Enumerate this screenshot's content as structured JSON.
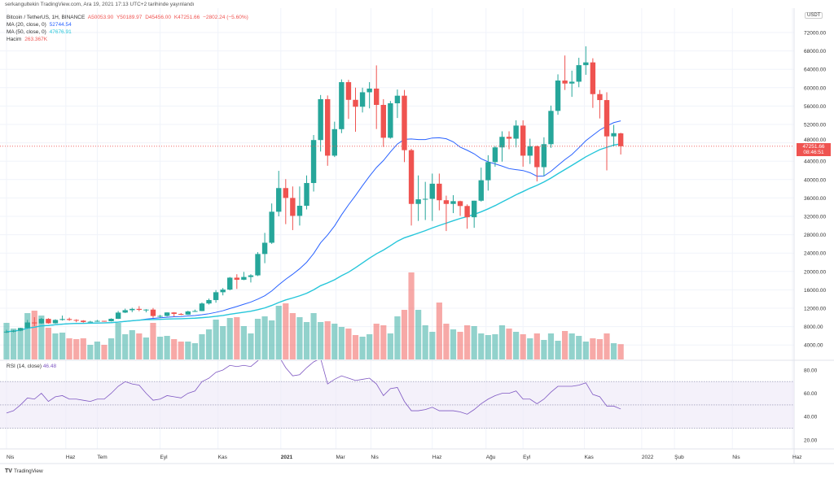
{
  "published": "serkangultekin TradingView.com, Ara 19, 2021 17:13 UTC+2 tarihinde yayınlandı",
  "legend": {
    "symbol": "Bitcoin / TetherUS, 1H, BINANCE",
    "open": "A50053.90",
    "high": "Y50189.97",
    "low": "D45456.00",
    "close": "K47251.66",
    "change": "−2802.24 (−5.60%)",
    "ma20_label": "MA (20, close, 0)",
    "ma20_value": "52744.54",
    "ma50_label": "MA (50, close, 0)",
    "ma50_value": "47676.91",
    "volume_label": "Hacim",
    "volume_value": "263.367K"
  },
  "rsi_legend": {
    "label": "RSI (14, close)",
    "value": "46.48"
  },
  "currency": "USDT",
  "last_price": {
    "price": "47251.66",
    "countdown": "08:46:51"
  },
  "footer": {
    "logo": "TV",
    "brand": "TradingView"
  },
  "colors": {
    "up": "#26a69a",
    "down": "#ef5350",
    "ma20": "#2962ff",
    "ma50": "#26c6da",
    "rsi": "#7e57c2",
    "rsi_band": "#ede7f6"
  },
  "chart_data": {
    "type": "candlestick",
    "title": "Bitcoin / TetherUS",
    "price_ticks": [
      "72000.00",
      "68000.00",
      "64000.00",
      "60000.00",
      "56000.00",
      "52000.00",
      "48000.00",
      "44000.00",
      "40000.00",
      "36000.00",
      "32000.00",
      "28000.00",
      "24000.00",
      "20000.00",
      "16000.00",
      "12000.00",
      "8000.00",
      "4000.00"
    ],
    "price_range": [
      2000,
      74000
    ],
    "rsi_ticks": [
      "80.00",
      "60.00",
      "40.00",
      "20.00"
    ],
    "rsi_range": [
      10,
      87
    ],
    "rsi_levels": [
      70,
      50,
      30
    ],
    "time_labels": [
      {
        "label": "Nis",
        "week": 0
      },
      {
        "label": "Haz",
        "week": 8.5
      },
      {
        "label": "Tem",
        "week": 13
      },
      {
        "label": "Eyl",
        "week": 22
      },
      {
        "label": "Kas",
        "week": 30.3
      },
      {
        "label": "2021",
        "week": 39.3,
        "bold": true
      },
      {
        "label": "Mar",
        "week": 47.2
      },
      {
        "label": "Nis",
        "week": 52.2
      },
      {
        "label": "Haz",
        "week": 61
      },
      {
        "label": "Ağu",
        "week": 68.7
      },
      {
        "label": "Eyl",
        "week": 74
      },
      {
        "label": "Kas",
        "week": 82.8
      },
      {
        "label": "2022",
        "week": 91
      },
      {
        "label": "Şub",
        "week": 95.7
      },
      {
        "label": "Nis",
        "week": 104
      },
      {
        "label": "Haz",
        "week": 112.6
      }
    ],
    "open": [
      6800,
      6900,
      7120,
      7700,
      8900,
      8700,
      9680,
      8720,
      9450,
      9650,
      9450,
      9300,
      9000,
      9070,
      9250,
      9160,
      9700,
      11050,
      11570,
      11850,
      11650,
      11700,
      10300,
      10330,
      11080,
      10760,
      10600,
      11300,
      11390,
      13030,
      13780,
      15480,
      16050,
      18650,
      18200,
      18800,
      19150,
      23800,
      26250,
      33000,
      38150,
      36000,
      32100,
      34300,
      39250,
      48600,
      57500,
      45200,
      50970,
      61200,
      57350,
      55850,
      59000,
      59800,
      56250,
      49100,
      56600,
      58250,
      46400,
      34700,
      35700,
      35800,
      39100,
      35500,
      34700,
      35300,
      34250,
      31800,
      35400,
      39850,
      43800,
      47000,
      49300,
      48900,
      51750,
      45200,
      47250,
      42700,
      47700,
      54950,
      61550,
      60900,
      61300,
      64900,
      65500,
      58600,
      57300,
      49400,
      50053.9
    ],
    "high": [
      7300,
      7250,
      7750,
      9450,
      10050,
      9900,
      9830,
      9600,
      10400,
      9950,
      9600,
      9400,
      9250,
      9450,
      9250,
      9800,
      11400,
      11900,
      12100,
      12450,
      11800,
      12050,
      10550,
      11100,
      11150,
      10950,
      11450,
      11700,
      13250,
      14100,
      15950,
      16400,
      18800,
      19400,
      19900,
      19400,
      24200,
      28400,
      34800,
      41900,
      40100,
      38500,
      38500,
      40900,
      49700,
      58400,
      58300,
      52600,
      61800,
      61700,
      60000,
      60000,
      61200,
      64850,
      57500,
      57100,
      59600,
      59500,
      46700,
      40900,
      39500,
      41300,
      41300,
      36500,
      36600,
      35400,
      34600,
      35400,
      42600,
      45300,
      47300,
      50500,
      50500,
      52900,
      52900,
      48900,
      47400,
      49200,
      56100,
      62900,
      67000,
      63700,
      66500,
      69000,
      66400,
      59500,
      59000,
      51900,
      50189.97
    ],
    "low": [
      6600,
      6750,
      7000,
      7600,
      8100,
      8600,
      8620,
      8650,
      9300,
      9250,
      8950,
      8850,
      8900,
      9050,
      9050,
      9100,
      9650,
      10950,
      11150,
      11350,
      11100,
      9900,
      9880,
      10200,
      10150,
      10500,
      10550,
      11200,
      11350,
      12800,
      13200,
      14800,
      15900,
      16200,
      18100,
      17600,
      19000,
      21800,
      26000,
      32000,
      30300,
      29000,
      30000,
      33500,
      37400,
      46100,
      43000,
      44900,
      50100,
      53200,
      50400,
      54600,
      55500,
      51000,
      47100,
      48900,
      53400,
      43800,
      30000,
      31000,
      31200,
      31000,
      33300,
      28800,
      32700,
      32100,
      29300,
      29500,
      35200,
      37600,
      42800,
      43900,
      46600,
      47000,
      42800,
      43400,
      39600,
      40750,
      46900,
      54100,
      59500,
      58000,
      60100,
      62800,
      55600,
      53300,
      42000,
      47300,
      45456.0
    ],
    "close": [
      6900,
      7120,
      7700,
      8900,
      8700,
      9680,
      8720,
      9450,
      9650,
      9450,
      9300,
      9000,
      9070,
      9250,
      9160,
      9700,
      11050,
      11570,
      11850,
      11650,
      11700,
      10300,
      10330,
      11080,
      10760,
      10600,
      11300,
      11390,
      13030,
      13780,
      15480,
      16050,
      18650,
      18200,
      18800,
      19150,
      23800,
      26250,
      33000,
      38150,
      36000,
      32100,
      34300,
      39250,
      48600,
      57500,
      45200,
      50970,
      61200,
      57350,
      55850,
      59000,
      59800,
      56250,
      49100,
      56600,
      58250,
      46400,
      34700,
      35700,
      35800,
      39100,
      35500,
      34700,
      35300,
      34250,
      31800,
      35400,
      39850,
      43800,
      47000,
      49300,
      48900,
      51750,
      45200,
      47250,
      42700,
      47700,
      54950,
      61550,
      60900,
      61300,
      64900,
      65500,
      58600,
      57300,
      49400,
      50100,
      47251.66
    ],
    "volume_k": [
      630,
      532,
      504,
      798,
      840,
      756,
      546,
      448,
      462,
      364,
      350,
      364,
      252,
      308,
      252,
      364,
      630,
      434,
      504,
      448,
      378,
      630,
      392,
      406,
      350,
      308,
      308,
      280,
      434,
      518,
      686,
      574,
      714,
      728,
      574,
      448,
      700,
      742,
      672,
      924,
      966,
      798,
      728,
      644,
      798,
      644,
      658,
      616,
      560,
      532,
      420,
      392,
      434,
      616,
      588,
      448,
      742,
      854,
      1498,
      854,
      588,
      476,
      980,
      616,
      518,
      476,
      588,
      574,
      448,
      420,
      434,
      588,
      532,
      476,
      434,
      364,
      448,
      336,
      448,
      322,
      490,
      448,
      406,
      308,
      364,
      350,
      448,
      280,
      263.367
    ],
    "rsi": [
      43,
      45,
      50,
      56,
      55,
      60,
      53,
      57,
      58,
      55,
      55,
      54,
      53,
      55,
      55,
      60,
      66,
      70,
      68,
      67,
      60,
      54,
      55,
      58,
      57,
      56,
      60,
      62,
      70,
      73,
      78,
      80,
      84,
      83,
      84,
      83,
      88,
      95,
      96,
      92,
      82,
      75,
      76,
      82,
      87,
      90,
      68,
      72,
      75,
      73,
      71,
      72,
      73,
      68,
      58,
      64,
      65,
      53,
      45,
      45,
      46,
      48,
      45,
      45,
      45,
      44,
      42,
      46,
      51,
      55,
      58,
      60,
      60,
      62,
      55,
      55,
      51,
      55,
      61,
      66,
      66,
      66,
      67,
      69,
      59,
      57,
      49,
      49,
      46.48
    ],
    "ma_periods": [
      20,
      50
    ]
  }
}
